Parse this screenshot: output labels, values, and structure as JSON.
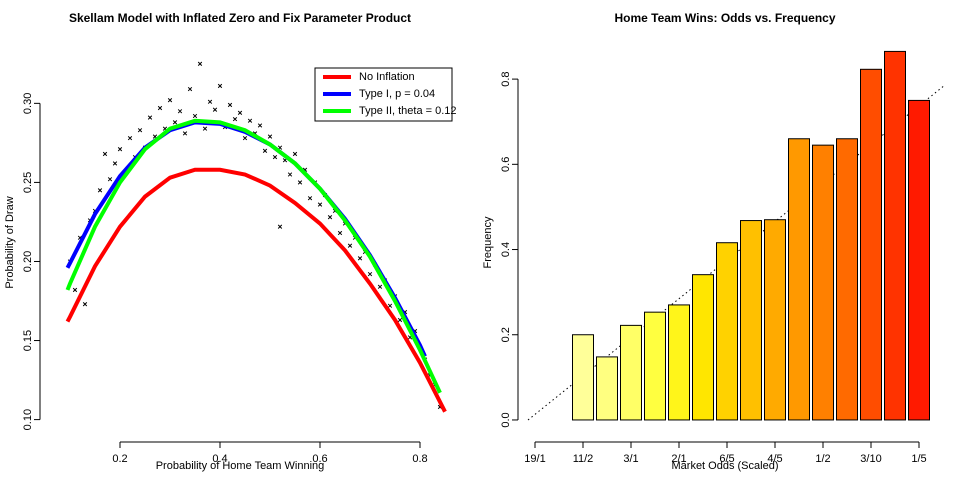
{
  "chart_data": [
    {
      "type": "line",
      "title": "Skellam Model with Inflated Zero and Fix Parameter Product",
      "xlabel": "Probability of Home Team Winning",
      "ylabel": "Probability of Draw",
      "xlim": [
        0.06,
        0.88
      ],
      "ylim": [
        0.089,
        0.335
      ],
      "xticks": [
        0.2,
        0.4,
        0.6,
        0.8
      ],
      "yticks": [
        {
          "value": 0.1,
          "label": "0.10"
        },
        0.15,
        {
          "value": 0.2,
          "label": "0.20"
        },
        0.25,
        {
          "value": 0.3,
          "label": "0.30"
        }
      ],
      "legend": "topright",
      "points": {
        "color": "#000000",
        "marker": "x",
        "x": [
          0.1,
          0.11,
          0.12,
          0.13,
          0.14,
          0.15,
          0.16,
          0.17,
          0.18,
          0.19,
          0.2,
          0.21,
          0.22,
          0.23,
          0.24,
          0.25,
          0.26,
          0.27,
          0.28,
          0.29,
          0.3,
          0.31,
          0.32,
          0.33,
          0.34,
          0.35,
          0.36,
          0.37,
          0.38,
          0.39,
          0.4,
          0.41,
          0.42,
          0.43,
          0.44,
          0.45,
          0.46,
          0.47,
          0.48,
          0.49,
          0.5,
          0.51,
          0.52,
          0.53,
          0.54,
          0.55,
          0.56,
          0.57,
          0.58,
          0.59,
          0.6,
          0.61,
          0.62,
          0.63,
          0.64,
          0.65,
          0.66,
          0.67,
          0.68,
          0.69,
          0.7,
          0.71,
          0.72,
          0.73,
          0.74,
          0.75,
          0.76,
          0.77,
          0.78,
          0.79,
          0.8,
          0.81,
          0.82,
          0.83,
          0.84,
          0.52
        ],
        "values": [
          0.2,
          0.182,
          0.215,
          0.173,
          0.226,
          0.232,
          0.245,
          0.268,
          0.252,
          0.262,
          0.271,
          0.256,
          0.278,
          0.266,
          0.283,
          0.272,
          0.291,
          0.279,
          0.297,
          0.284,
          0.302,
          0.288,
          0.295,
          0.281,
          0.309,
          0.292,
          0.325,
          0.284,
          0.301,
          0.296,
          0.311,
          0.285,
          0.299,
          0.29,
          0.294,
          0.278,
          0.289,
          0.281,
          0.286,
          0.27,
          0.279,
          0.266,
          0.272,
          0.264,
          0.255,
          0.268,
          0.25,
          0.258,
          0.24,
          0.25,
          0.236,
          0.242,
          0.228,
          0.232,
          0.218,
          0.224,
          0.21,
          0.215,
          0.202,
          0.206,
          0.192,
          0.198,
          0.184,
          0.188,
          0.172,
          0.178,
          0.163,
          0.168,
          0.152,
          0.156,
          0.145,
          0.138,
          0.128,
          0.122,
          0.108,
          0.222
        ]
      },
      "series": [
        {
          "name": "No Inflation",
          "color": "#FF0000",
          "x": [
            0.095,
            0.1,
            0.15,
            0.2,
            0.25,
            0.3,
            0.35,
            0.4,
            0.45,
            0.5,
            0.55,
            0.6,
            0.65,
            0.7,
            0.75,
            0.8,
            0.85
          ],
          "values": [
            0.162,
            0.165,
            0.197,
            0.222,
            0.241,
            0.253,
            0.258,
            0.258,
            0.255,
            0.248,
            0.237,
            0.224,
            0.207,
            0.186,
            0.163,
            0.136,
            0.105
          ]
        },
        {
          "name": "Type I, p = 0.04",
          "color": "#0000FF",
          "x": [
            0.095,
            0.1,
            0.15,
            0.2,
            0.25,
            0.3,
            0.35,
            0.4,
            0.45,
            0.5,
            0.55,
            0.6,
            0.65,
            0.7,
            0.75,
            0.8,
            0.81
          ],
          "values": [
            0.196,
            0.199,
            0.23,
            0.254,
            0.272,
            0.283,
            0.288,
            0.287,
            0.282,
            0.274,
            0.262,
            0.246,
            0.227,
            0.204,
            0.177,
            0.147,
            0.14
          ]
        },
        {
          "name": "Type II, theta = 0.12",
          "color": "#00FF00",
          "x": [
            0.095,
            0.1,
            0.15,
            0.2,
            0.25,
            0.3,
            0.35,
            0.4,
            0.45,
            0.5,
            0.55,
            0.6,
            0.65,
            0.7,
            0.75,
            0.8,
            0.84
          ],
          "values": [
            0.182,
            0.186,
            0.222,
            0.25,
            0.271,
            0.284,
            0.289,
            0.288,
            0.283,
            0.274,
            0.262,
            0.246,
            0.226,
            0.203,
            0.175,
            0.144,
            0.117
          ]
        }
      ]
    },
    {
      "type": "bar",
      "title": "Home Team Wins: Odds vs. Frequency",
      "xlabel": "Market Odds (Scaled)",
      "ylabel": "Frequency",
      "ylim": [
        -0.04,
        0.873
      ],
      "yticks": [
        {
          "value": 0,
          "label": "0.0"
        },
        0.2,
        0.4,
        0.6,
        0.8
      ],
      "categories": [
        "19/1",
        null,
        "11/2",
        null,
        "3/1",
        null,
        "2/1",
        null,
        "6/5",
        null,
        "4/5",
        null,
        "1/2",
        null,
        "3/10",
        null,
        "1/5"
      ],
      "values": [
        0,
        null,
        0.2,
        0.148,
        0.222,
        0.253,
        0.27,
        0.341,
        0.416,
        0.468,
        0.47,
        0.66,
        0.645,
        0.66,
        0.823,
        0.865,
        0.75
      ],
      "colors": [
        "#FFFFB0",
        "#FFFFA0",
        "#FFFF99",
        "#FFFF80",
        "#FFFF66",
        "#FFFF40",
        "#FFF51A",
        "#FFE600",
        "#FFD200",
        "#FFC000",
        "#FFAA00",
        "#FF9900",
        "#FF8000",
        "#FF6A00",
        "#FF4D00",
        "#FF3300",
        "#FF1A00"
      ]
    }
  ]
}
